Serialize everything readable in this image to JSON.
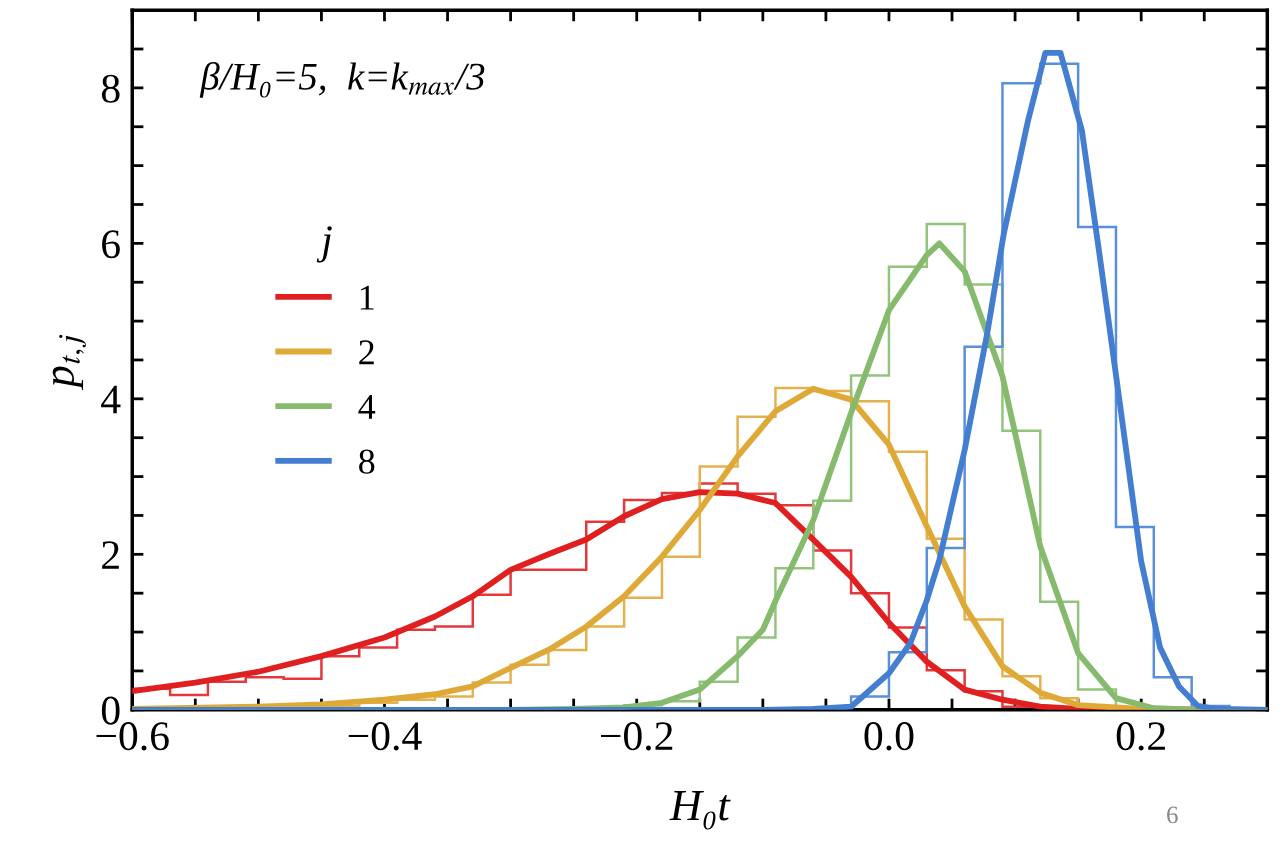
{
  "chart_data": {
    "type": "histogram",
    "xlabel": "H₀t",
    "ylabel": "p$_{t,j}$",
    "legend_title": "j",
    "annotations": [
      "β/H₀=5,  k=k$_{max}$/3",
      "6"
    ],
    "xlim": [
      -0.6,
      0.3
    ],
    "ylim": [
      0,
      9
    ],
    "xticks": [
      {
        "value": -0.6,
        "label": "−0.6"
      },
      {
        "value": -0.55,
        "label": null
      },
      {
        "value": -0.5,
        "label": null
      },
      {
        "value": -0.45,
        "label": null
      },
      {
        "value": -0.4,
        "label": "−0.4"
      },
      {
        "value": -0.35,
        "label": null
      },
      {
        "value": -0.3,
        "label": null
      },
      {
        "value": -0.25,
        "label": null
      },
      {
        "value": -0.2,
        "label": "−0.2"
      },
      {
        "value": -0.15,
        "label": null
      },
      {
        "value": -0.1,
        "label": null
      },
      {
        "value": -0.05,
        "label": null
      },
      {
        "value": 0,
        "label": "0.0"
      },
      {
        "value": 0.05,
        "label": null
      },
      {
        "value": 0.1,
        "label": null
      },
      {
        "value": 0.15,
        "label": null
      },
      {
        "value": 0.2,
        "label": "0.2"
      },
      {
        "value": 0.25,
        "label": null
      }
    ],
    "yticks": [
      0,
      {
        "value": 0.5,
        "label": null
      },
      {
        "value": 1,
        "label": null
      },
      {
        "value": 1.5,
        "label": null
      },
      2,
      {
        "value": 2.5,
        "label": null
      },
      {
        "value": 3,
        "label": null
      },
      {
        "value": 3.5,
        "label": null
      },
      4,
      {
        "value": 4.5,
        "label": null
      },
      {
        "value": 5,
        "label": null
      },
      {
        "value": 5.5,
        "label": null
      },
      6,
      {
        "value": 6.5,
        "label": null
      },
      {
        "value": 7,
        "label": null
      },
      {
        "value": 7.5,
        "label": null
      },
      8,
      {
        "value": 8.5,
        "label": null
      }
    ],
    "grid": false,
    "legend": "left",
    "marker": "none",
    "line_style": "solid",
    "series": [
      {
        "color": "#e4393c",
        "bins": [
          -0.6,
          -0.57,
          -0.54,
          -0.51,
          -0.48,
          -0.45,
          -0.42,
          -0.39,
          -0.36,
          -0.33,
          -0.3,
          -0.27,
          -0.24,
          -0.21,
          -0.18,
          -0.15,
          -0.12,
          -0.09,
          -0.06,
          -0.03,
          0,
          0.03,
          0.06,
          0.09,
          0.12,
          0.15
        ],
        "values": [
          0.27,
          0.19,
          0.36,
          0.42,
          0.4,
          0.69,
          0.8,
          1.03,
          1.07,
          1.48,
          1.8,
          1.8,
          2.42,
          2.7,
          2.79,
          2.91,
          2.78,
          2.63,
          2.05,
          1.5,
          1.06,
          0.51,
          0.24,
          0.04,
          0.01
        ]
      },
      {
        "color": "#e3b24e",
        "bins": [
          -0.6,
          -0.57,
          -0.54,
          -0.51,
          -0.48,
          -0.45,
          -0.42,
          -0.39,
          -0.36,
          -0.33,
          -0.3,
          -0.27,
          -0.24,
          -0.21,
          -0.18,
          -0.15,
          -0.12,
          -0.09,
          -0.06,
          -0.03,
          0,
          0.03,
          0.06,
          0.09,
          0.12,
          0.15,
          0.18
        ],
        "values": [
          0.01,
          0.01,
          0.02,
          0.03,
          0.04,
          0.05,
          0.09,
          0.13,
          0.17,
          0.35,
          0.58,
          0.77,
          1.07,
          1.44,
          1.97,
          3.13,
          3.77,
          4.14,
          4.1,
          3.97,
          3.32,
          2.2,
          1.16,
          0.43,
          0.15,
          0.03
        ]
      },
      {
        "color": "#92c47e",
        "bins": [
          -0.27,
          -0.24,
          -0.21,
          -0.18,
          -0.15,
          -0.12,
          -0.09,
          -0.06,
          -0.03,
          0,
          0.03,
          0.06,
          0.09,
          0.12,
          0.15,
          0.18,
          0.21
        ],
        "values": [
          0.01,
          0.03,
          0.06,
          0.11,
          0.36,
          0.93,
          1.82,
          2.69,
          4.3,
          5.7,
          6.25,
          5.47,
          3.59,
          1.39,
          0.26,
          0.03
        ]
      },
      {
        "color": "#5a8fda",
        "bins": [
          -0.06,
          -0.03,
          0,
          0.03,
          0.06,
          0.09,
          0.12,
          0.15,
          0.18,
          0.21,
          0.24,
          0.27
        ],
        "values": [
          0.03,
          0.17,
          0.74,
          2.08,
          4.67,
          8.06,
          8.31,
          6.21,
          2.35,
          0.42,
          0.05
        ]
      },
      {
        "type": "line",
        "name": "1",
        "color": "#e02020",
        "x": [
          -0.6,
          -0.55,
          -0.5,
          -0.45,
          -0.4,
          -0.36,
          -0.33,
          -0.3,
          -0.27,
          -0.24,
          -0.21,
          -0.18,
          -0.15,
          -0.12,
          -0.09,
          -0.06,
          -0.03,
          0,
          0.03,
          0.06,
          0.09,
          0.12,
          0.15,
          0.2,
          0.3
        ],
        "values": [
          0.24,
          0.35,
          0.49,
          0.69,
          0.93,
          1.2,
          1.46,
          1.8,
          2.0,
          2.19,
          2.49,
          2.71,
          2.8,
          2.78,
          2.66,
          2.19,
          1.71,
          1.12,
          0.62,
          0.26,
          0.13,
          0.04,
          0.01,
          0,
          0
        ]
      },
      {
        "type": "line",
        "name": "2",
        "color": "#dfa938",
        "x": [
          -0.6,
          -0.5,
          -0.45,
          -0.4,
          -0.36,
          -0.33,
          -0.3,
          -0.27,
          -0.24,
          -0.21,
          -0.18,
          -0.15,
          -0.12,
          -0.09,
          -0.06,
          -0.03,
          0,
          0.03,
          0.06,
          0.09,
          0.12,
          0.15,
          0.2,
          0.3
        ],
        "values": [
          0.01,
          0.04,
          0.07,
          0.13,
          0.2,
          0.3,
          0.54,
          0.77,
          1.07,
          1.46,
          1.97,
          2.57,
          3.26,
          3.84,
          4.13,
          3.99,
          3.41,
          2.36,
          1.33,
          0.56,
          0.22,
          0.06,
          0.01,
          0
        ]
      },
      {
        "type": "line",
        "name": "4",
        "color": "#86bb6e",
        "x": [
          -0.6,
          -0.3,
          -0.25,
          -0.21,
          -0.18,
          -0.15,
          -0.12,
          -0.1,
          -0.09,
          -0.06,
          -0.03,
          0,
          0.03,
          0.04,
          0.06,
          0.09,
          0.12,
          0.15,
          0.18,
          0.21,
          0.25,
          0.3
        ],
        "values": [
          0,
          0,
          0.01,
          0.03,
          0.09,
          0.26,
          0.69,
          1.03,
          1.4,
          2.44,
          3.82,
          5.14,
          5.85,
          6.0,
          5.64,
          4.29,
          2.1,
          0.73,
          0.15,
          0.02,
          0,
          0
        ]
      },
      {
        "type": "line",
        "name": "8",
        "color": "#447ed0",
        "x": [
          -0.6,
          -0.1,
          -0.06,
          -0.03,
          0,
          0.017,
          0.03,
          0.04,
          0.06,
          0.078,
          0.091,
          0.11,
          0.124,
          0.136,
          0.153,
          0.167,
          0.182,
          0.2,
          0.215,
          0.23,
          0.245,
          0.26,
          0.3
        ],
        "values": [
          0,
          0,
          0.01,
          0.04,
          0.47,
          0.86,
          1.41,
          1.93,
          3.34,
          4.85,
          6.12,
          7.56,
          8.45,
          8.45,
          7.45,
          5.85,
          4.07,
          1.91,
          0.8,
          0.3,
          0.05,
          0.01,
          0
        ]
      }
    ]
  }
}
